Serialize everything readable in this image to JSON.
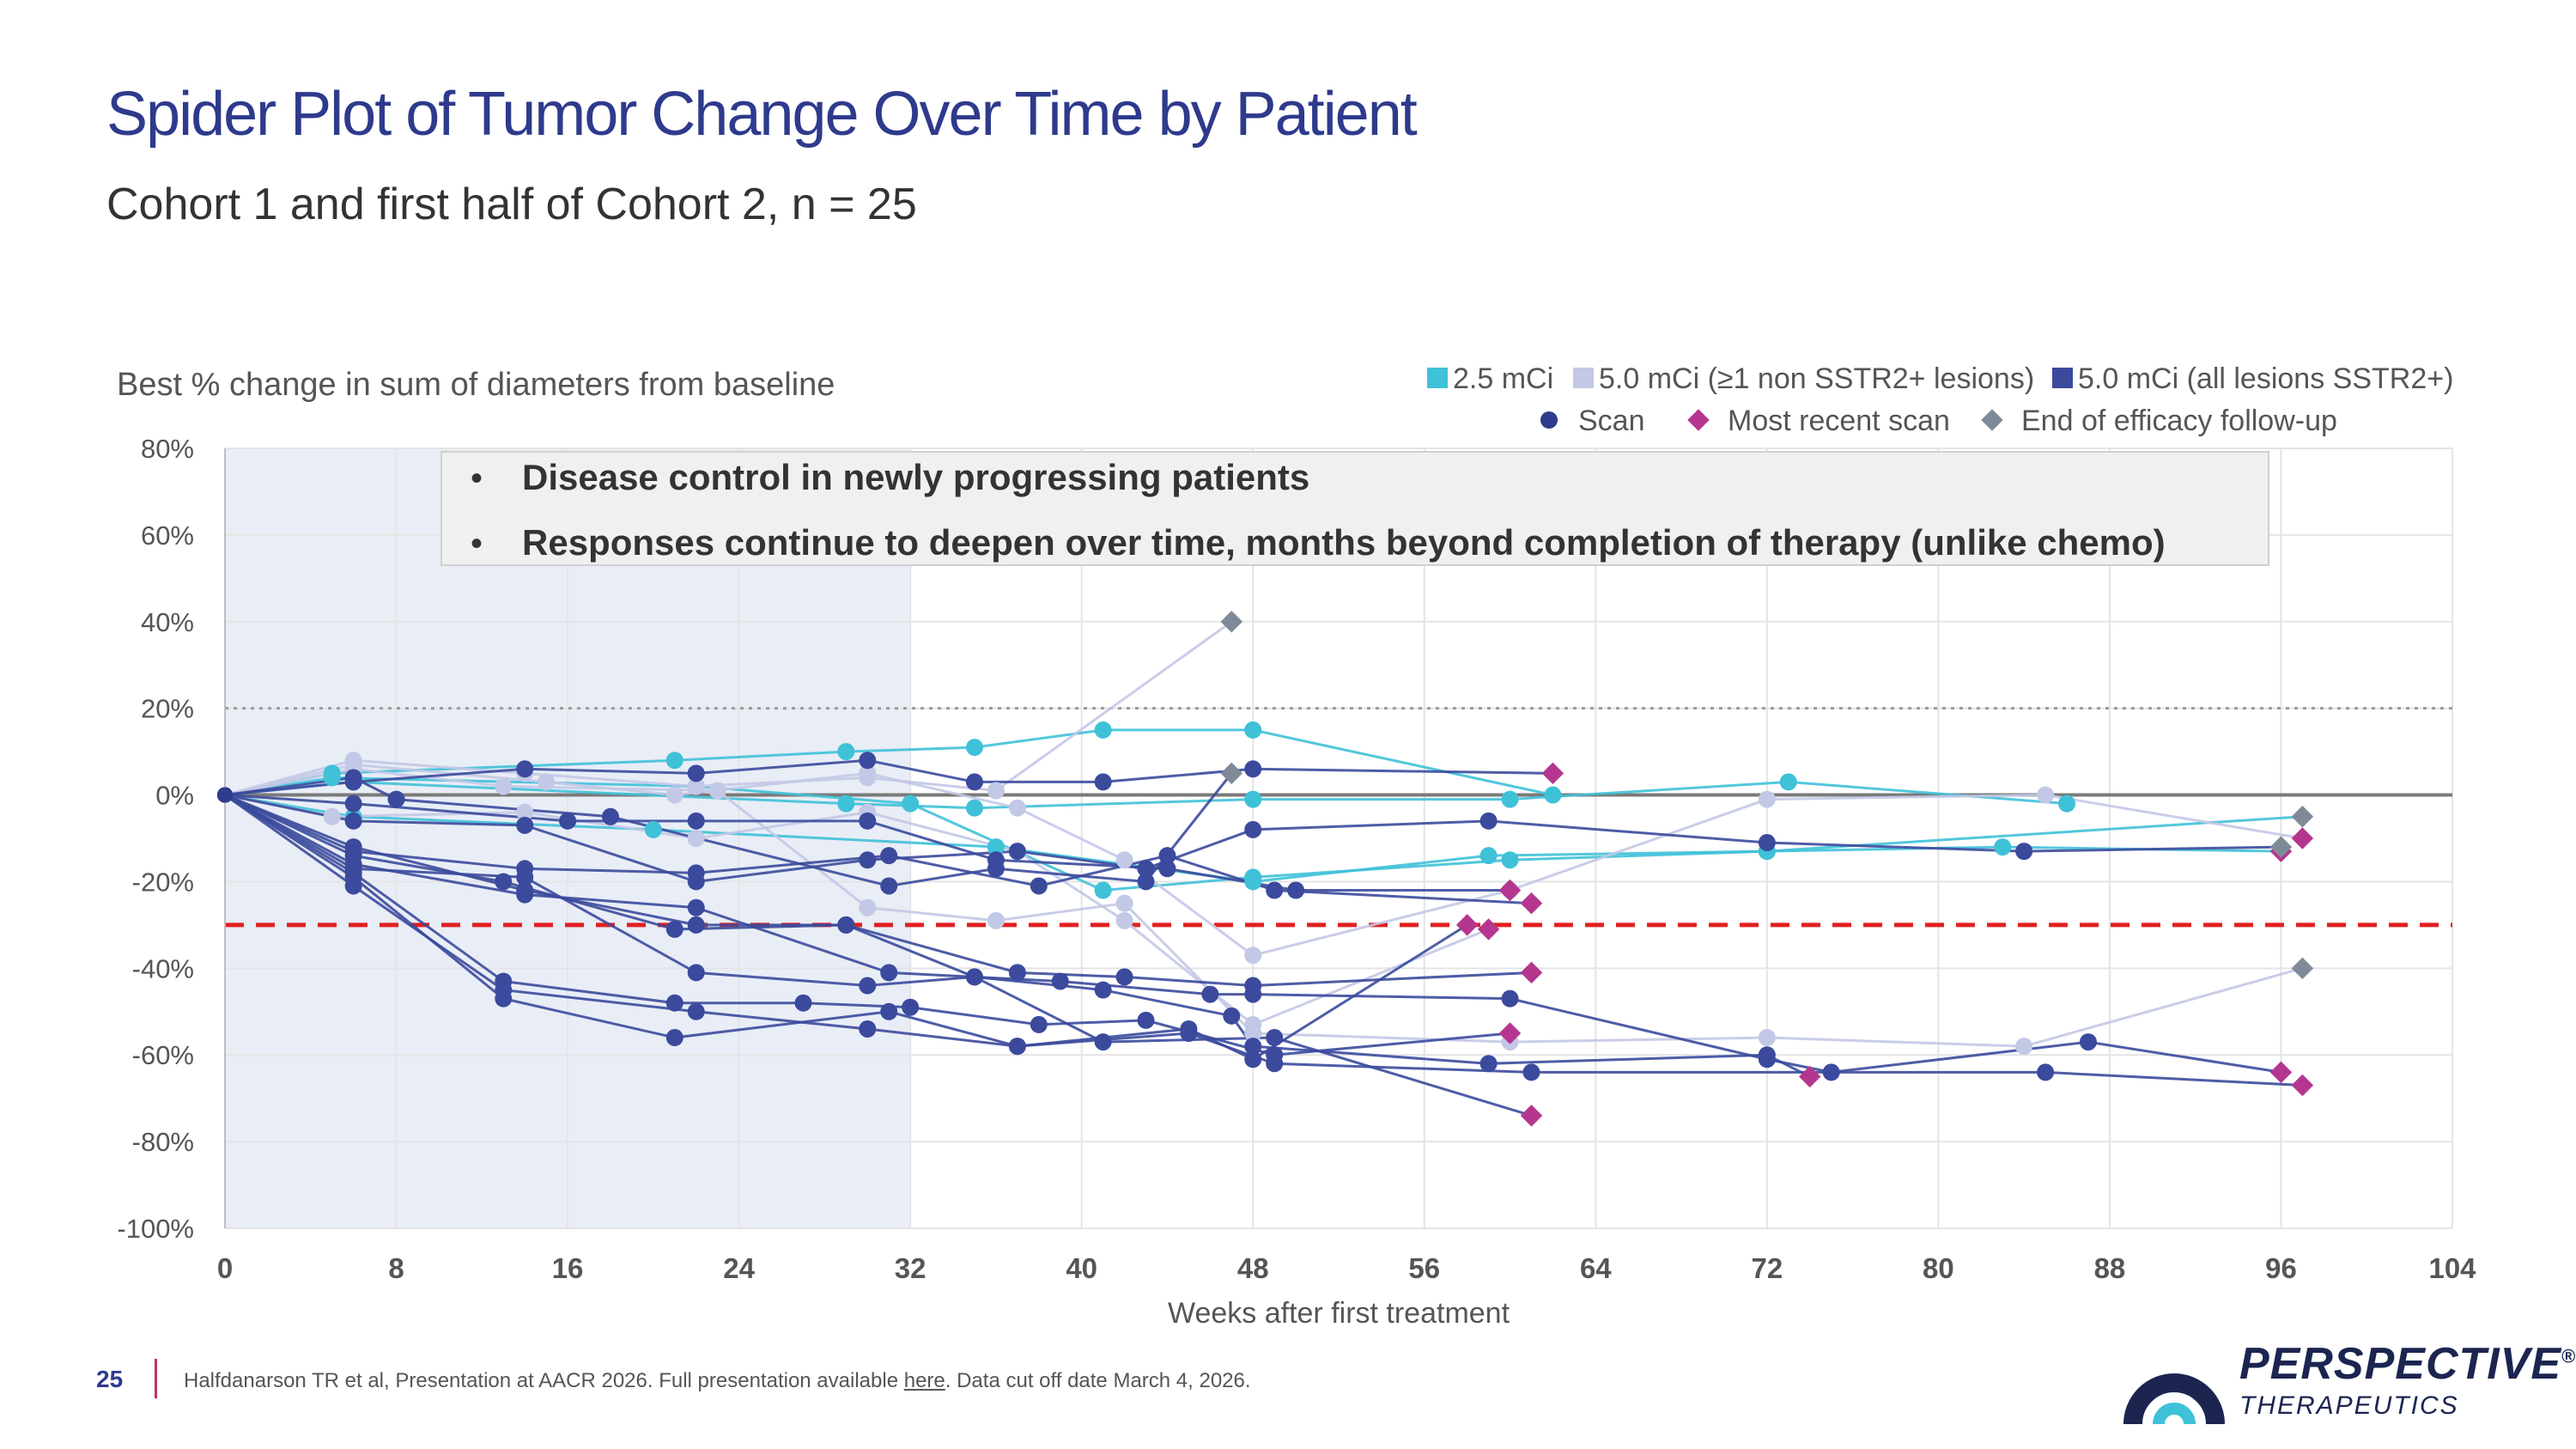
{
  "slide": {
    "title": "Spider Plot of Tumor Change Over Time by Patient",
    "subtitle": "Cohort 1 and first half of Cohort 2, n = 25",
    "page_number": "25",
    "footnote_before": "Halfdanarson TR et al, Presentation at AACR 2026. Full presentation available ",
    "footnote_link": "here",
    "footnote_after": ". Data cut off date March 4, 2026."
  },
  "logo": {
    "name": "PERSPECTIVE",
    "registered": "®",
    "sub": "THERAPEUTICS"
  },
  "chart_data": {
    "type": "line",
    "ylabel": "Best % change in sum of diameters from baseline",
    "xlabel": "Weeks after first treatment",
    "xlim": [
      0,
      104
    ],
    "ylim": [
      -100,
      80
    ],
    "xticks": [
      0,
      8,
      16,
      24,
      32,
      40,
      48,
      56,
      64,
      72,
      80,
      88,
      96,
      104
    ],
    "yticks": [
      {
        "v": 80,
        "label": "80%"
      },
      {
        "v": 60,
        "label": "60%"
      },
      {
        "v": 40,
        "label": "40%"
      },
      {
        "v": 20,
        "label": "20%"
      },
      {
        "v": 0,
        "label": "0%"
      },
      {
        "v": -20,
        "label": "-20%"
      },
      {
        "v": -40,
        "label": "-40%"
      },
      {
        "v": -60,
        "label": "-60%"
      },
      {
        "v": -80,
        "label": "-80%"
      },
      {
        "v": -100,
        "label": "-100%"
      }
    ],
    "grid": true,
    "shaded_region": {
      "x": [
        0,
        32
      ],
      "color": "#e9edf6"
    },
    "reference_lines": [
      {
        "y": 20,
        "style": "dotted",
        "color": "#9a9a9a"
      },
      {
        "y": 0,
        "style": "solid",
        "color": "#7a7a7a"
      },
      {
        "y": -30,
        "style": "dashed",
        "color": "#e02020"
      }
    ],
    "callout": {
      "bullets": [
        "Disease control in newly progressing patients",
        "Responses continue to deepen over time, months beyond completion of therapy  (unlike chemo)"
      ]
    },
    "legend": {
      "placement": "top-right",
      "cohorts": [
        {
          "label": "2.5 mCi",
          "color": "#3fc1d8"
        },
        {
          "label": "5.0 mCi (≥1 non SSTR2+ lesions)",
          "color": "#c3c8e6"
        },
        {
          "label": "5.0 mCi (all lesions SSTR2+)",
          "color": "#3b4a9c"
        }
      ],
      "markers": [
        {
          "label": "Scan",
          "shape": "circle",
          "color": "#2f3b8c"
        },
        {
          "label": "Most recent scan",
          "shape": "diamond",
          "color": "#b5368f"
        },
        {
          "label": "End of efficacy follow-up",
          "shape": "diamond",
          "color": "#7f8a99"
        }
      ]
    },
    "series": [
      {
        "cohort": 0,
        "x": [
          0,
          5,
          21,
          29,
          35,
          41,
          48,
          62
        ],
        "y": [
          0,
          5,
          8,
          10,
          11,
          15,
          15,
          0
        ],
        "end": "scan"
      },
      {
        "cohort": 0,
        "x": [
          0,
          5,
          22,
          32,
          41,
          48,
          60,
          72,
          97
        ],
        "y": [
          0,
          4,
          2,
          -2,
          -22,
          -19,
          -15,
          -13,
          -5
        ],
        "end": "end"
      },
      {
        "cohort": 0,
        "x": [
          0,
          6,
          29,
          35,
          48,
          60,
          73,
          86
        ],
        "y": [
          0,
          3,
          -2,
          -3,
          -1,
          -1,
          3,
          -2
        ],
        "end": "scan"
      },
      {
        "cohort": 0,
        "x": [
          0,
          6,
          20,
          36,
          48,
          59,
          72,
          83,
          96
        ],
        "y": [
          0,
          -5,
          -8,
          -12,
          -20,
          -14,
          -13,
          -12,
          -13
        ],
        "end": "recent"
      },
      {
        "cohort": 1,
        "x": [
          0,
          6,
          14,
          22,
          30,
          36,
          47
        ],
        "y": [
          0,
          8,
          5,
          2,
          4,
          1,
          40
        ],
        "end": "end"
      },
      {
        "cohort": 1,
        "x": [
          0,
          6,
          15,
          21,
          30,
          37,
          42,
          48,
          60,
          72,
          85,
          97
        ],
        "y": [
          0,
          7,
          3,
          0,
          5,
          -3,
          -15,
          -37,
          -22,
          -1,
          0,
          -10
        ],
        "end": "recent"
      },
      {
        "cohort": 1,
        "x": [
          0,
          6,
          13,
          23,
          30,
          36,
          42,
          48,
          60,
          72,
          84,
          97
        ],
        "y": [
          0,
          6,
          2,
          1,
          -26,
          -29,
          -25,
          -55,
          -57,
          -56,
          -58,
          -40
        ],
        "end": "end"
      },
      {
        "cohort": 1,
        "x": [
          0,
          5,
          14,
          22,
          30,
          37,
          42,
          48,
          59
        ],
        "y": [
          0,
          -5,
          -4,
          -10,
          -4,
          -13,
          -29,
          -53,
          -31
        ],
        "end": "recent"
      },
      {
        "cohort": 2,
        "x": [
          0,
          6,
          14,
          22,
          30,
          35,
          41,
          48,
          62
        ],
        "y": [
          0,
          3,
          6,
          5,
          8,
          3,
          3,
          6,
          5
        ],
        "end": "recent"
      },
      {
        "cohort": 2,
        "x": [
          0,
          6,
          8,
          18,
          31,
          36,
          43,
          47
        ],
        "y": [
          0,
          4,
          -1,
          -5,
          -21,
          -17,
          -20,
          5
        ],
        "end": "end"
      },
      {
        "cohort": 2,
        "x": [
          0,
          6,
          16,
          22,
          30,
          36,
          44,
          50,
          60
        ],
        "y": [
          0,
          -2,
          -6,
          -6,
          -6,
          -15,
          -17,
          -22,
          -22
        ],
        "end": "recent"
      },
      {
        "cohort": 2,
        "x": [
          0,
          6,
          14,
          22,
          30,
          37,
          43,
          48,
          59,
          72,
          84,
          96
        ],
        "y": [
          0,
          -6,
          -7,
          -20,
          -15,
          -13,
          -17,
          -8,
          -6,
          -11,
          -13,
          -12
        ],
        "end": "end"
      },
      {
        "cohort": 2,
        "x": [
          0,
          6,
          14,
          22,
          31,
          38,
          44,
          49,
          61
        ],
        "y": [
          0,
          -13,
          -17,
          -18,
          -14,
          -21,
          -14,
          -22,
          -25
        ],
        "end": "recent"
      },
      {
        "cohort": 2,
        "x": [
          0,
          6,
          13,
          21,
          29,
          37,
          42,
          48,
          61
        ],
        "y": [
          0,
          -14,
          -20,
          -31,
          -30,
          -41,
          -42,
          -44,
          -41
        ],
        "end": "recent"
      },
      {
        "cohort": 2,
        "x": [
          0,
          6,
          14,
          22,
          31,
          39,
          46,
          48,
          60,
          72,
          75,
          87,
          96
        ],
        "y": [
          0,
          -16,
          -23,
          -26,
          -41,
          -43,
          -46,
          -46,
          -47,
          -61,
          -64,
          -57,
          -64
        ],
        "end": "recent"
      },
      {
        "cohort": 2,
        "x": [
          0,
          6,
          14,
          22,
          30,
          35,
          41,
          47,
          48,
          59,
          72,
          74
        ],
        "y": [
          0,
          -17,
          -19,
          -41,
          -44,
          -42,
          -45,
          -51,
          -58,
          -62,
          -60,
          -65
        ],
        "end": "recent"
      },
      {
        "cohort": 2,
        "x": [
          0,
          6,
          13,
          21,
          27,
          32,
          38,
          43,
          49,
          60
        ],
        "y": [
          0,
          -18,
          -43,
          -48,
          -48,
          -49,
          -53,
          -52,
          -60,
          -55
        ],
        "end": "recent"
      },
      {
        "cohort": 2,
        "x": [
          0,
          6,
          13,
          21,
          31,
          37,
          45,
          48,
          58
        ],
        "y": [
          0,
          -19,
          -47,
          -56,
          -50,
          -58,
          -54,
          -61,
          -30
        ],
        "end": "recent"
      },
      {
        "cohort": 2,
        "x": [
          0,
          6,
          14,
          22,
          29,
          35,
          41,
          49,
          61
        ],
        "y": [
          0,
          -12,
          -22,
          -30,
          -30,
          -42,
          -57,
          -56,
          -74
        ],
        "end": "recent"
      },
      {
        "cohort": 2,
        "x": [
          0,
          6,
          13,
          22,
          30,
          37,
          45,
          49,
          61,
          85,
          97
        ],
        "y": [
          0,
          -21,
          -45,
          -50,
          -54,
          -58,
          -55,
          -62,
          -64,
          -64,
          -67
        ],
        "end": "recent"
      }
    ]
  }
}
